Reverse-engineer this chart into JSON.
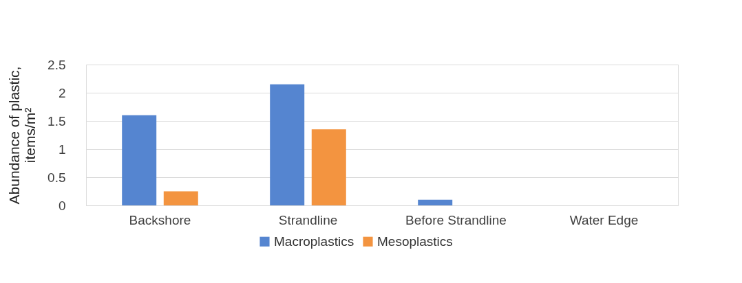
{
  "chart_data": {
    "type": "bar",
    "ylabel": "Abundance of plastic, items/m²",
    "categories": [
      "Backshore",
      "Strandline",
      "Before Strandline",
      "Water Edge"
    ],
    "series": [
      {
        "name": "Macroplastics",
        "color": "#5585d0",
        "values": [
          1.6,
          2.15,
          0.1,
          0
        ]
      },
      {
        "name": "Mesoplastics",
        "color": "#f39440",
        "values": [
          0.25,
          1.35,
          0,
          0
        ]
      }
    ],
    "ylim": [
      0,
      2.5
    ],
    "yticks": [
      0,
      0.5,
      1,
      1.5,
      2,
      2.5
    ],
    "grid": "y",
    "legend": "bottom"
  }
}
